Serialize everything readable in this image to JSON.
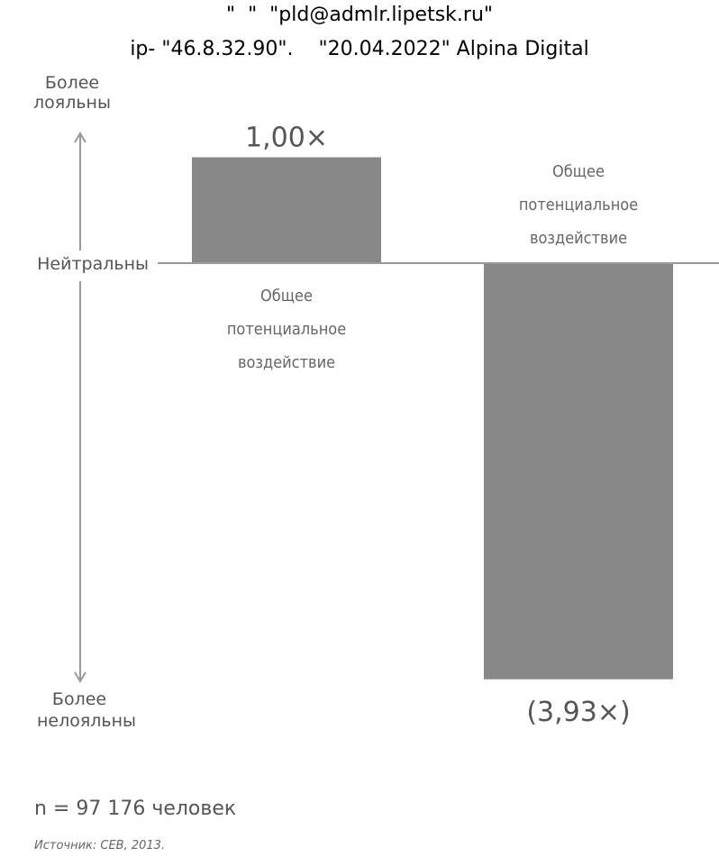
{
  "watermark": {
    "line1": "\"  \"  \"pld@admlr.lipetsk.ru\"",
    "line2": "ip- \"46.8.32.90\".    \"20.04.2022\" Alpina Digital"
  },
  "chart_data": {
    "type": "bar",
    "categories": [
      "",
      ""
    ],
    "values": [
      1.0,
      -3.93
    ],
    "value_labels": [
      "1,00×",
      "(3,93×)"
    ],
    "bar_labels": [
      [
        "Общее",
        "потенциальное",
        "воздействие"
      ],
      [
        "Общее",
        "потенциальное",
        "воздействие"
      ]
    ],
    "ylim": [
      -3.93,
      1.0
    ],
    "axis_labels": {
      "top": [
        "Более",
        "лояльны"
      ],
      "neutral": "Нейтральны",
      "bottom": [
        "Более",
        "нелояльны"
      ]
    },
    "bar_color": "#888888",
    "axis_color": "#999999"
  },
  "footer": {
    "sample": "n = 97 176 человек",
    "source": "Источник: CEB, 2013."
  }
}
